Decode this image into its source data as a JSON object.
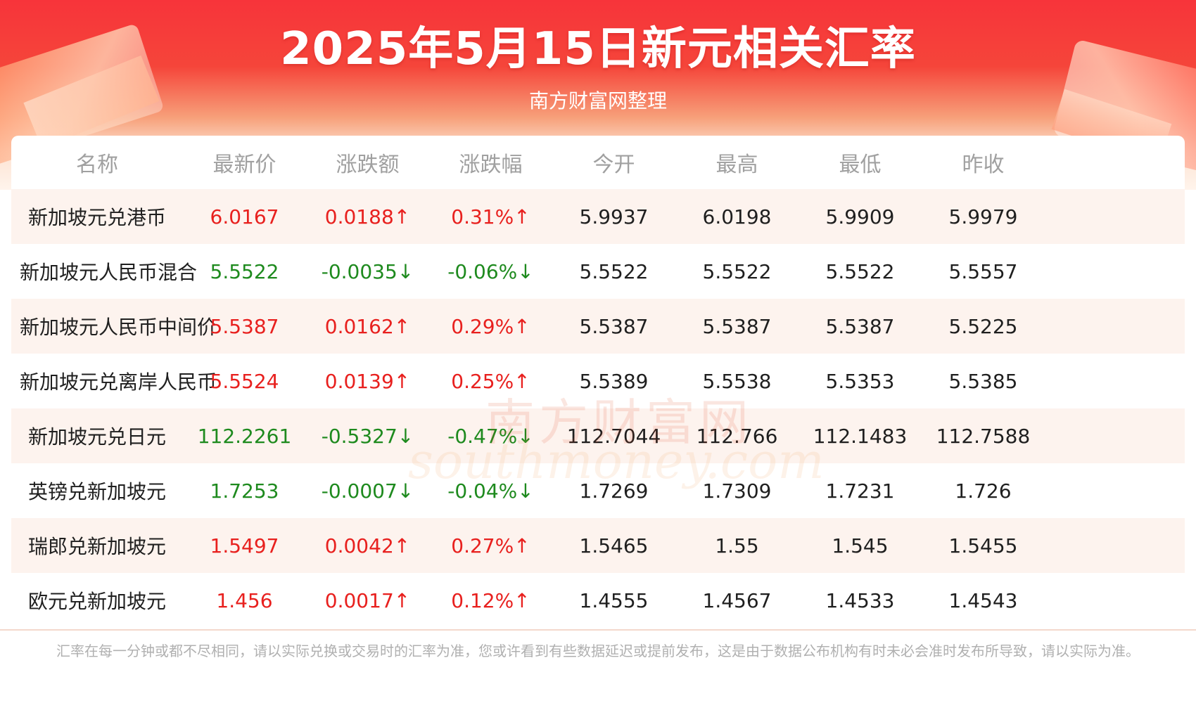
{
  "header": {
    "title": "2025年5月15日新元相关汇率",
    "subtitle": "南方财富网整理"
  },
  "table": {
    "columns": [
      "名称",
      "最新价",
      "涨跌额",
      "涨跌幅",
      "今开",
      "最高",
      "最低",
      "昨收"
    ],
    "rows": [
      {
        "name": "新加坡元兑港币",
        "latest": "6.0167",
        "change": "0.0188↑",
        "pct": "0.31%↑",
        "open": "5.9937",
        "high": "6.0198",
        "low": "5.9909",
        "prev": "5.9979",
        "trend": "up"
      },
      {
        "name": "新加坡元人民币混合",
        "latest": "5.5522",
        "change": "-0.0035↓",
        "pct": "-0.06%↓",
        "open": "5.5522",
        "high": "5.5522",
        "low": "5.5522",
        "prev": "5.5557",
        "trend": "down"
      },
      {
        "name": "新加坡元人民币中间价",
        "latest": "5.5387",
        "change": "0.0162↑",
        "pct": "0.29%↑",
        "open": "5.5387",
        "high": "5.5387",
        "low": "5.5387",
        "prev": "5.5225",
        "trend": "up"
      },
      {
        "name": "新加坡元兑离岸人民币",
        "latest": "5.5524",
        "change": "0.0139↑",
        "pct": "0.25%↑",
        "open": "5.5389",
        "high": "5.5538",
        "low": "5.5353",
        "prev": "5.5385",
        "trend": "up"
      },
      {
        "name": "新加坡元兑日元",
        "latest": "112.2261",
        "change": "-0.5327↓",
        "pct": "-0.47%↓",
        "open": "112.7044",
        "high": "112.766",
        "low": "112.1483",
        "prev": "112.7588",
        "trend": "down"
      },
      {
        "name": "英镑兑新加坡元",
        "latest": "1.7253",
        "change": "-0.0007↓",
        "pct": "-0.04%↓",
        "open": "1.7269",
        "high": "1.7309",
        "low": "1.7231",
        "prev": "1.726",
        "trend": "down"
      },
      {
        "name": "瑞郎兑新加坡元",
        "latest": "1.5497",
        "change": "0.0042↑",
        "pct": "0.27%↑",
        "open": "1.5465",
        "high": "1.55",
        "low": "1.545",
        "prev": "1.5455",
        "trend": "up"
      },
      {
        "name": "欧元兑新加坡元",
        "latest": "1.456",
        "change": "0.0017↑",
        "pct": "0.12%↑",
        "open": "1.4555",
        "high": "1.4567",
        "low": "1.4533",
        "prev": "1.4543",
        "trend": "up"
      }
    ]
  },
  "watermark": {
    "cn": "南方财富网",
    "en": "southmoney.com"
  },
  "footnote": "汇率在每一分钟或都不尽相同，请以实际兑换或交易时的汇率为准，您或许看到有些数据延迟或提前发布，这是由于数据公布机构有时未必会准时发布所导致，请以实际为准。",
  "colors": {
    "up": "#e8201e",
    "down": "#1e8a1e",
    "banner": "#f5343a",
    "alt_row": "#fdf3ee"
  }
}
